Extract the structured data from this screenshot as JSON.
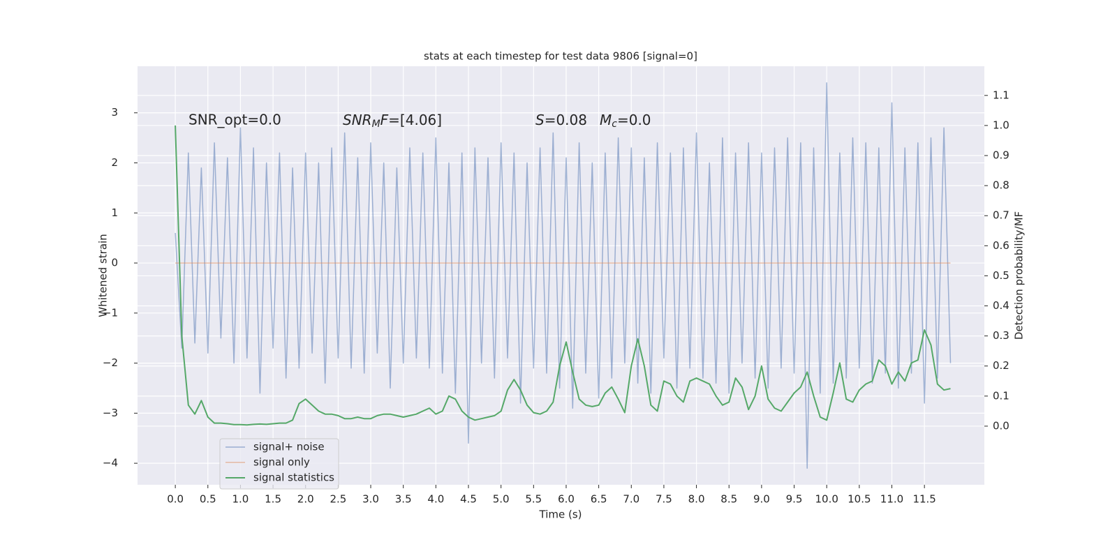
{
  "chart_data": {
    "type": "line",
    "title": "stats at each timestep for test data 9806 [signal=0]",
    "xlabel": "Time (s)",
    "ylabel": "Whitened strain",
    "y2label": "Detection probability/MF",
    "annotations": [
      [
        "SNR_opt=0.0"
      ],
      [
        "SNR",
        "M",
        "F",
        "=[4.06]"
      ],
      [
        "S",
        "=0.08",
        "M",
        "c",
        "=0.0"
      ]
    ],
    "grid": true,
    "legend": "lower left",
    "xlim": [
      -0.58,
      12.42
    ],
    "ylim": [
      -4.43,
      3.93
    ],
    "y2lim": [
      -0.195,
      1.197
    ],
    "xticks": [
      {
        "value": 0,
        "label": "0.0"
      },
      0.5,
      {
        "value": 1,
        "label": "1.0"
      },
      1.5,
      {
        "value": 2,
        "label": "2.0"
      },
      2.5,
      {
        "value": 3,
        "label": "3.0"
      },
      3.5,
      {
        "value": 4,
        "label": "4.0"
      },
      4.5,
      {
        "value": 5,
        "label": "5.0"
      },
      5.5,
      {
        "value": 6,
        "label": "6.0"
      },
      6.5,
      {
        "value": 7,
        "label": "7.0"
      },
      7.5,
      {
        "value": 8,
        "label": "8.0"
      },
      8.5,
      {
        "value": 9,
        "label": "9.0"
      },
      9.5,
      {
        "value": 10,
        "label": "10.0"
      },
      10.5,
      {
        "value": 11,
        "label": "11.0"
      },
      11.5
    ],
    "yticks": [
      {
        "value": -4,
        "label": "−4"
      },
      {
        "value": -3,
        "label": "−3"
      },
      {
        "value": -2,
        "label": "−2"
      },
      {
        "value": -1,
        "label": "−1"
      },
      0,
      1,
      2,
      3
    ],
    "y2ticks": [
      {
        "value": 0,
        "label": "0.0"
      },
      0.1,
      0.2,
      0.3,
      0.4,
      0.5,
      0.6,
      0.7,
      0.8,
      0.9,
      {
        "value": 1,
        "label": "1.0"
      },
      1.1
    ],
    "x": [
      0,
      0.1,
      0.2,
      0.3,
      0.4,
      0.5,
      0.6,
      0.7,
      0.8,
      0.9,
      1,
      1.1,
      1.2,
      1.3,
      1.4,
      1.5,
      1.6,
      1.7,
      1.8,
      1.9,
      2,
      2.1,
      2.2,
      2.3,
      2.4,
      2.5,
      2.6,
      2.7,
      2.8,
      2.9,
      3,
      3.1,
      3.2,
      3.3,
      3.4,
      3.5,
      3.6,
      3.7,
      3.8,
      3.9,
      4,
      4.1,
      4.2,
      4.3,
      4.4,
      4.5,
      4.6,
      4.7,
      4.8,
      4.9,
      5,
      5.1,
      5.2,
      5.3,
      5.4,
      5.5,
      5.6,
      5.7,
      5.8,
      5.9,
      6,
      6.1,
      6.2,
      6.3,
      6.4,
      6.5,
      6.6,
      6.7,
      6.8,
      6.9,
      7,
      7.1,
      7.2,
      7.3,
      7.4,
      7.5,
      7.6,
      7.7,
      7.8,
      7.9,
      8,
      8.1,
      8.2,
      8.3,
      8.4,
      8.5,
      8.6,
      8.7,
      8.8,
      8.9,
      9,
      9.1,
      9.2,
      9.3,
      9.4,
      9.5,
      9.6,
      9.7,
      9.8,
      9.9,
      10,
      10.1,
      10.2,
      10.3,
      10.4,
      10.5,
      10.6,
      10.7,
      10.8,
      10.9,
      11,
      11.1,
      11.2,
      11.3,
      11.4,
      11.5,
      11.6,
      11.7,
      11.8,
      11.9
    ],
    "series": [
      {
        "name": "signal+ noise",
        "color": "#4c72b0",
        "values": [
          0.6,
          -1.7,
          2.2,
          -1.6,
          1.9,
          -1.8,
          2.4,
          -1.5,
          2.1,
          -2.0,
          2.7,
          -1.9,
          2.3,
          -2.6,
          2.0,
          -1.7,
          2.2,
          -2.3,
          1.9,
          -2.1,
          2.2,
          -1.8,
          2.0,
          -2.4,
          2.3,
          -1.9,
          2.6,
          -2.1,
          2.1,
          -2.2,
          2.4,
          -1.8,
          2.0,
          -2.5,
          1.9,
          -2.0,
          2.3,
          -1.9,
          2.2,
          -2.1,
          2.5,
          -2.2,
          2.0,
          -2.6,
          2.2,
          -3.6,
          2.3,
          -2.0,
          2.1,
          -2.3,
          2.4,
          -1.9,
          2.2,
          -2.8,
          2.0,
          -2.1,
          2.3,
          -2.2,
          2.6,
          -2.5,
          2.1,
          -2.9,
          2.4,
          -2.2,
          2.0,
          -2.7,
          2.2,
          -2.3,
          2.5,
          -2.0,
          2.3,
          -2.4,
          2.1,
          -2.6,
          2.4,
          -1.9,
          2.2,
          -2.5,
          2.3,
          -2.1,
          2.6,
          -2.3,
          2.0,
          -2.4,
          2.5,
          -2.6,
          2.2,
          -2.0,
          2.4,
          -2.3,
          2.2,
          -2.5,
          2.3,
          -2.1,
          2.5,
          -2.2,
          2.4,
          -4.1,
          2.3,
          -2.6,
          3.6,
          -2.4,
          2.2,
          -2.3,
          2.5,
          -2.1,
          2.4,
          -2.4,
          2.3,
          -2.2,
          3.2,
          -2.5,
          2.3,
          -2.2,
          2.4,
          -2.8,
          2.5,
          -2.3,
          2.7,
          -2.0
        ]
      },
      {
        "name": "signal only",
        "color": "#dd8452",
        "values": [
          0,
          0,
          0,
          0,
          0,
          0,
          0,
          0,
          0,
          0,
          0,
          0,
          0,
          0,
          0,
          0,
          0,
          0,
          0,
          0,
          0,
          0,
          0,
          0,
          0,
          0,
          0,
          0,
          0,
          0,
          0,
          0,
          0,
          0,
          0,
          0,
          0,
          0,
          0,
          0,
          0,
          0,
          0,
          0,
          0,
          0,
          0,
          0,
          0,
          0,
          0,
          0,
          0,
          0,
          0,
          0,
          0,
          0,
          0,
          0,
          0,
          0,
          0,
          0,
          0,
          0,
          0,
          0,
          0,
          0,
          0,
          0,
          0,
          0,
          0,
          0,
          0,
          0,
          0,
          0,
          0,
          0,
          0,
          0,
          0,
          0,
          0,
          0,
          0,
          0,
          0,
          0,
          0,
          0,
          0,
          0,
          0,
          0,
          0,
          0,
          0,
          0,
          0,
          0,
          0,
          0,
          0,
          0,
          0,
          0,
          0,
          0,
          0,
          0,
          0,
          0,
          0,
          0,
          0,
          0
        ]
      },
      {
        "name": "signal statistics",
        "color": "#55a868",
        "axis": "y2",
        "values": [
          1.0,
          0.3,
          0.07,
          0.04,
          0.085,
          0.03,
          0.01,
          0.01,
          0.008,
          0.005,
          0.005,
          0.004,
          0.006,
          0.007,
          0.006,
          0.008,
          0.01,
          0.01,
          0.02,
          0.075,
          0.09,
          0.07,
          0.05,
          0.04,
          0.04,
          0.035,
          0.025,
          0.025,
          0.03,
          0.025,
          0.025,
          0.035,
          0.04,
          0.04,
          0.035,
          0.03,
          0.035,
          0.04,
          0.05,
          0.06,
          0.04,
          0.05,
          0.1,
          0.09,
          0.05,
          0.03,
          0.02,
          0.025,
          0.03,
          0.035,
          0.05,
          0.12,
          0.155,
          0.12,
          0.07,
          0.045,
          0.04,
          0.05,
          0.08,
          0.2,
          0.28,
          0.18,
          0.09,
          0.07,
          0.065,
          0.07,
          0.11,
          0.13,
          0.09,
          0.045,
          0.2,
          0.29,
          0.2,
          0.07,
          0.05,
          0.15,
          0.14,
          0.1,
          0.08,
          0.15,
          0.16,
          0.15,
          0.14,
          0.1,
          0.07,
          0.08,
          0.16,
          0.13,
          0.055,
          0.1,
          0.2,
          0.09,
          0.06,
          0.05,
          0.08,
          0.11,
          0.13,
          0.18,
          0.1,
          0.03,
          0.02,
          0.11,
          0.21,
          0.09,
          0.08,
          0.12,
          0.14,
          0.15,
          0.22,
          0.2,
          0.14,
          0.18,
          0.15,
          0.21,
          0.22,
          0.32,
          0.27,
          0.14,
          0.12,
          0.125
        ]
      }
    ]
  }
}
